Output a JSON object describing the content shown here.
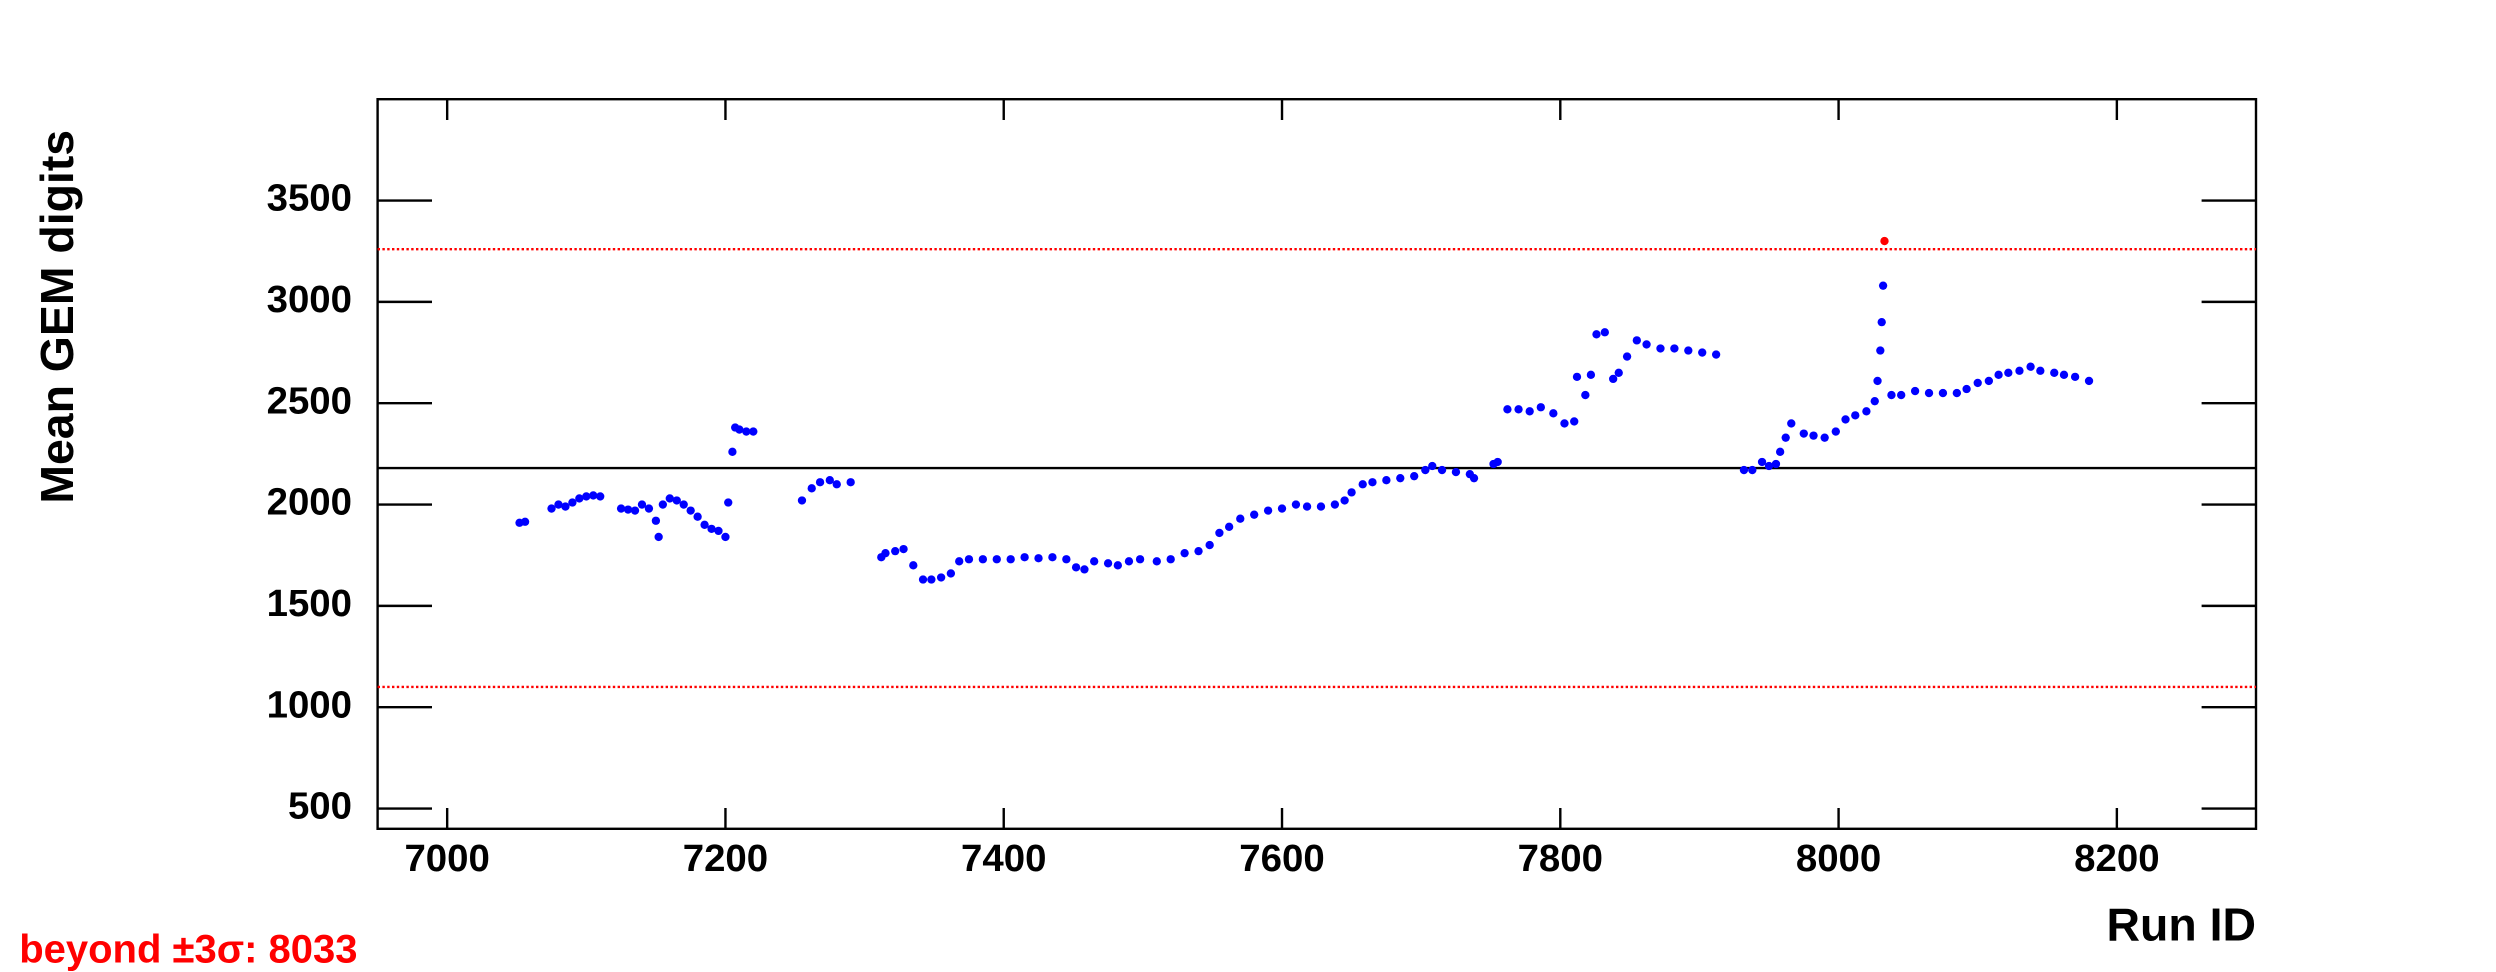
{
  "chart_data": {
    "type": "scatter",
    "x_label": "Run ID",
    "y_label": "Mean GEM digits",
    "annotation": "beyond   ±3σ: 8033",
    "annotation_color": "#ff0000",
    "xlim": [
      6950,
      8300
    ],
    "ylim": [
      400,
      4000
    ],
    "xticks": [
      7000,
      7200,
      7400,
      7600,
      7800,
      8000,
      8200
    ],
    "yticks": [
      500,
      1000,
      1500,
      2000,
      2500,
      3000,
      3500
    ],
    "grid": false,
    "reference_lines": [
      {
        "value": 2180,
        "color": "#000000",
        "style": "solid"
      },
      {
        "value": 3260,
        "color": "#ff0000",
        "style": "dotted"
      },
      {
        "value": 1100,
        "color": "#ff0000",
        "style": "dotted"
      }
    ],
    "series": [
      {
        "color": "#0000ff",
        "x": [
          7052,
          7056,
          7075,
          7080,
          7085,
          7090,
          7095,
          7100,
          7105,
          7110,
          7125,
          7130,
          7135,
          7140,
          7145,
          7150,
          7152,
          7155,
          7160,
          7165,
          7170,
          7175,
          7180,
          7185,
          7190,
          7195,
          7200,
          7202,
          7205,
          7207,
          7210,
          7215,
          7220,
          7255,
          7262,
          7268,
          7275,
          7280,
          7290,
          7312,
          7315,
          7322,
          7328,
          7335,
          7342,
          7348,
          7355,
          7362,
          7368,
          7375,
          7385,
          7395,
          7405,
          7415,
          7425,
          7435,
          7445,
          7452,
          7458,
          7465,
          7475,
          7482,
          7490,
          7498,
          7510,
          7520,
          7530,
          7540,
          7548,
          7555,
          7562,
          7570,
          7580,
          7590,
          7600,
          7610,
          7618,
          7628,
          7638,
          7645,
          7650,
          7658,
          7665,
          7675,
          7685,
          7695,
          7703,
          7708,
          7715,
          7725,
          7735,
          7738,
          7752,
          7755,
          7762,
          7770,
          7778,
          7786,
          7795,
          7803,
          7810,
          7812,
          7818,
          7822,
          7826,
          7832,
          7838,
          7842,
          7848,
          7855,
          7862,
          7872,
          7882,
          7892,
          7902,
          7912,
          7932,
          7938,
          7945,
          7950,
          7955,
          7958,
          7962,
          7966,
          7975,
          7982,
          7990,
          7998,
          8005,
          8012,
          8020,
          8026,
          8028,
          8030,
          8031,
          8032,
          8038,
          8045,
          8055,
          8065,
          8075,
          8085,
          8092,
          8100,
          8108,
          8115,
          8122,
          8130,
          8138,
          8145,
          8155,
          8162,
          8170,
          8180
        ],
        "values": [
          1910,
          1915,
          1980,
          2000,
          1990,
          2010,
          2030,
          2040,
          2045,
          2040,
          1980,
          1975,
          1970,
          2000,
          1980,
          1920,
          1840,
          2000,
          2030,
          2020,
          2000,
          1970,
          1940,
          1900,
          1880,
          1870,
          1840,
          2010,
          2260,
          2380,
          2370,
          2360,
          2360,
          2020,
          2080,
          2110,
          2120,
          2100,
          2110,
          1740,
          1760,
          1770,
          1780,
          1700,
          1630,
          1630,
          1640,
          1660,
          1720,
          1730,
          1730,
          1730,
          1730,
          1740,
          1735,
          1740,
          1730,
          1690,
          1680,
          1720,
          1710,
          1700,
          1720,
          1730,
          1720,
          1730,
          1760,
          1770,
          1800,
          1860,
          1890,
          1930,
          1950,
          1970,
          1980,
          2000,
          1990,
          1990,
          2000,
          2020,
          2060,
          2100,
          2110,
          2120,
          2130,
          2140,
          2170,
          2190,
          2170,
          2160,
          2150,
          2130,
          2200,
          2210,
          2470,
          2470,
          2460,
          2480,
          2450,
          2400,
          2410,
          2630,
          2540,
          2640,
          2840,
          2850,
          2620,
          2650,
          2730,
          2810,
          2790,
          2770,
          2770,
          2760,
          2750,
          2740,
          2170,
          2170,
          2210,
          2190,
          2200,
          2260,
          2330,
          2400,
          2350,
          2340,
          2330,
          2360,
          2420,
          2440,
          2460,
          2510,
          2610,
          2760,
          2900,
          3080,
          2540,
          2540,
          2560,
          2550,
          2550,
          2550,
          2570,
          2600,
          2610,
          2640,
          2650,
          2660,
          2680,
          2660,
          2650,
          2640,
          2630,
          2610
        ]
      },
      {
        "color": "#ff0000",
        "x": [
          8033
        ],
        "values": [
          3300
        ]
      }
    ]
  }
}
